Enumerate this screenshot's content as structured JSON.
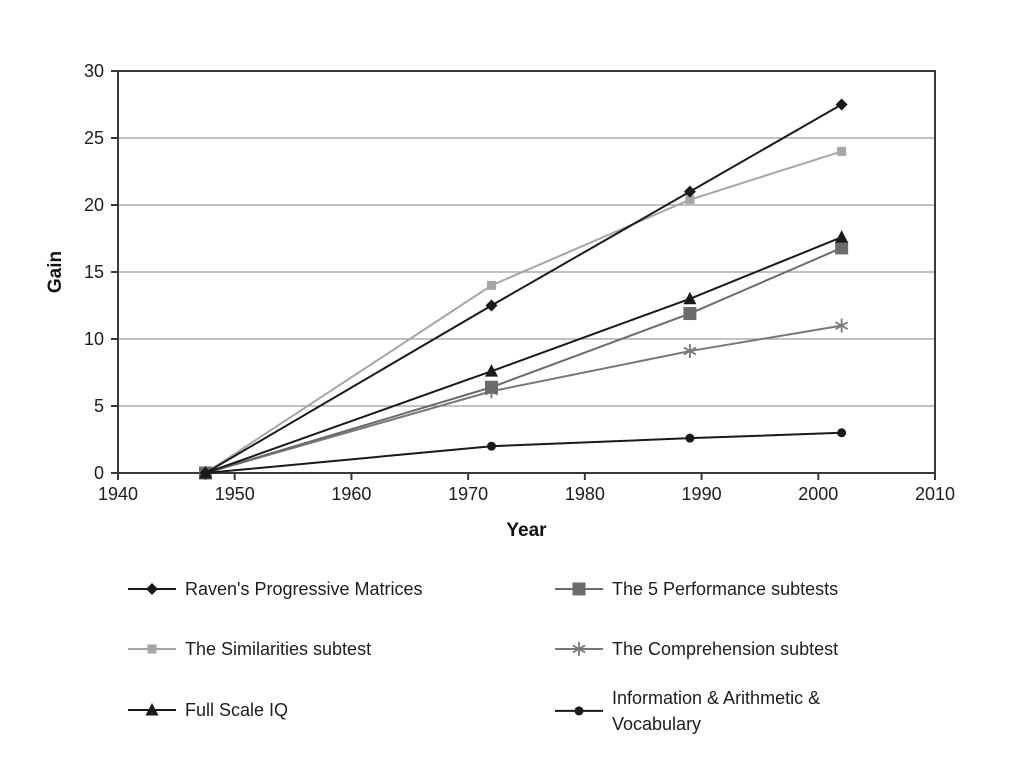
{
  "figure": {
    "ylabel": "Gain",
    "xlabel": "Year"
  },
  "chart_data": {
    "type": "line",
    "title": "",
    "xlabel": "Year",
    "ylabel": "Gain",
    "xlim": [
      1940,
      2010
    ],
    "ylim": [
      0,
      30
    ],
    "xticks": [
      "1940",
      "1950",
      "1960",
      "1970",
      "1980",
      "1990",
      "2000",
      "2010"
    ],
    "yticks": [
      "0",
      "5",
      "10",
      "15",
      "20",
      "25",
      "30"
    ],
    "grid": "horizontal gridlines at 5,10,15,20,25; full dark frame around plot",
    "legend_position": "bottom, two columns, three rows",
    "x": [
      1947.5,
      1972,
      1989,
      2002
    ],
    "series": [
      {
        "name": "Raven's Progressive Matrices",
        "marker": "diamond",
        "color": "#1a1a1a",
        "values": [
          0,
          12.5,
          21,
          27.5
        ]
      },
      {
        "name": "The 5 Performance subtests",
        "marker": "square-large",
        "color": "#6b6b6b",
        "values": [
          0,
          6.4,
          11.9,
          16.8
        ]
      },
      {
        "name": "The Similarities subtest",
        "marker": "square-small",
        "color": "#a6a6a6",
        "values": [
          0,
          14,
          20.4,
          24
        ]
      },
      {
        "name": "The Comprehension subtest",
        "marker": "asterisk",
        "color": "#787878",
        "values": [
          0,
          6.1,
          9.1,
          11
        ]
      },
      {
        "name": "Full Scale IQ",
        "marker": "triangle",
        "color": "#1a1a1a",
        "values": [
          0,
          7.6,
          13,
          17.6
        ]
      },
      {
        "name": "Information & Arithmetic & Vocabulary",
        "marker": "circle",
        "color": "#1a1a1a",
        "values": [
          0,
          2,
          2.6,
          3
        ]
      }
    ],
    "draw_order": [
      2,
      3,
      1,
      4,
      0,
      5
    ],
    "axis_color": "#383838",
    "gridline_color": "#9c9c9c",
    "tick_label_color": "#1d1d1d"
  }
}
